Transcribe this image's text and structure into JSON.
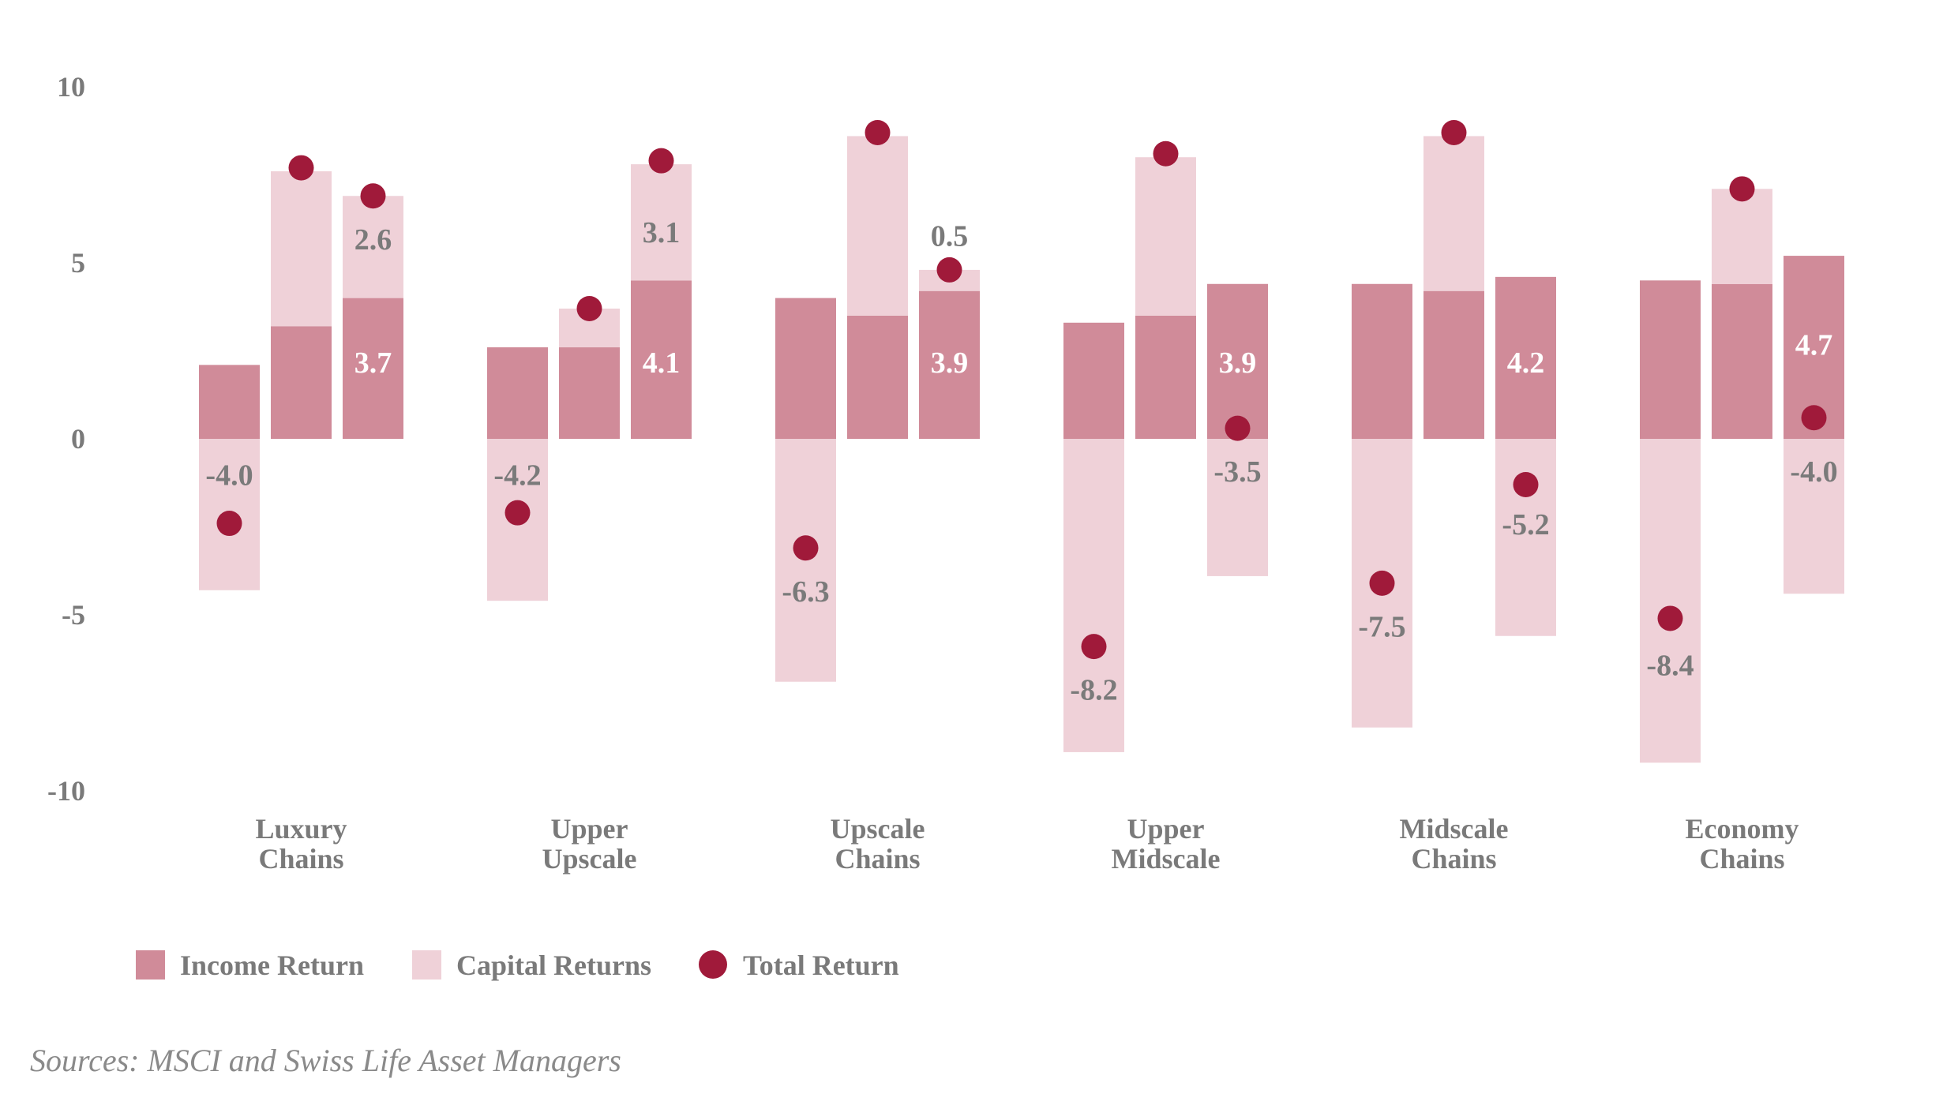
{
  "chart_data": {
    "type": "bar",
    "categories": [
      {
        "line1": "Luxury",
        "line2": "Chains"
      },
      {
        "line1": "Upper",
        "line2": "Upscale"
      },
      {
        "line1": "Upscale",
        "line2": "Chains"
      },
      {
        "line1": "Upper",
        "line2": "Midscale"
      },
      {
        "line1": "Midscale",
        "line2": "Chains"
      },
      {
        "line1": "Economy",
        "line2": "Chains"
      }
    ],
    "ylim": [
      -10,
      10
    ],
    "yticks": [
      10,
      5,
      0,
      -5,
      -10
    ],
    "series": [
      {
        "name": "Income Return",
        "kind": "bar",
        "color": "#d08b99"
      },
      {
        "name": "Capital Returns",
        "kind": "bar",
        "color": "#efd1d8"
      },
      {
        "name": "Total Return",
        "kind": "point",
        "color": "#a01a3a"
      }
    ],
    "groups": [
      {
        "bars": [
          {
            "income": 2.1,
            "capital": -4.3,
            "total": -2.4,
            "label": "-4.0",
            "label_at": -1.0,
            "label_style": "dark"
          },
          {
            "income": 3.2,
            "capital": 4.4,
            "total": 7.7,
            "label": "",
            "label_at": 0,
            "label_style": "dark"
          },
          {
            "income": 4.0,
            "capital": 2.9,
            "total": 6.9,
            "label": "2.6",
            "label_at": 5.7,
            "label_style": "dark",
            "label2": "3.7",
            "label2_at": 2.2
          }
        ]
      },
      {
        "bars": [
          {
            "income": 2.6,
            "capital": -4.6,
            "total": -2.1,
            "label": "-4.2",
            "label_at": -1.0,
            "label_style": "dark"
          },
          {
            "income": 2.6,
            "capital": 1.1,
            "total": 3.7,
            "label": "",
            "label_at": 0,
            "label_style": "dark"
          },
          {
            "income": 4.5,
            "capital": 3.3,
            "total": 7.9,
            "label": "3.1",
            "label_at": 5.9,
            "label_style": "dark",
            "label2": "4.1",
            "label2_at": 2.2
          }
        ]
      },
      {
        "bars": [
          {
            "income": 4.0,
            "capital": -6.9,
            "total": -3.1,
            "label": "-6.3",
            "label_at": -4.3,
            "label_style": "dark"
          },
          {
            "income": 3.5,
            "capital": 5.1,
            "total": 8.7,
            "label": "",
            "label_at": 0,
            "label_style": "dark"
          },
          {
            "income": 4.2,
            "capital": 0.6,
            "total": 4.8,
            "label": "0.5",
            "label_at": 5.8,
            "label_style": "dark",
            "label2": "3.9",
            "label2_at": 2.2
          }
        ]
      },
      {
        "bars": [
          {
            "income": 3.3,
            "capital": -8.9,
            "total": -5.9,
            "label": "-8.2",
            "label_at": -7.1,
            "label_style": "dark"
          },
          {
            "income": 3.5,
            "capital": 4.5,
            "total": 8.1,
            "label": "",
            "label_at": 0,
            "label_style": "dark"
          },
          {
            "income": 4.4,
            "capital": -3.9,
            "total": 0.3,
            "label": "-3.5",
            "label_at": -0.9,
            "label_style": "dark",
            "label2": "3.9",
            "label2_at": 2.2
          }
        ]
      },
      {
        "bars": [
          {
            "income": 4.4,
            "capital": -8.2,
            "total": -4.1,
            "label": "-7.5",
            "label_at": -5.3,
            "label_style": "dark"
          },
          {
            "income": 4.2,
            "capital": 4.4,
            "total": 8.7,
            "label": "",
            "label_at": 0,
            "label_style": "dark"
          },
          {
            "income": 4.6,
            "capital": -5.6,
            "total": -1.3,
            "label": "-5.2",
            "label_at": -2.4,
            "label_style": "dark",
            "label2": "4.2",
            "label2_at": 2.2
          }
        ]
      },
      {
        "bars": [
          {
            "income": 4.5,
            "capital": -9.2,
            "total": -5.1,
            "label": "-8.4",
            "label_at": -6.4,
            "label_style": "dark"
          },
          {
            "income": 4.4,
            "capital": 2.7,
            "total": 7.1,
            "label": "",
            "label_at": 0,
            "label_style": "dark"
          },
          {
            "income": 5.2,
            "capital": -4.4,
            "total": 0.6,
            "label": "-4.0",
            "label_at": -0.9,
            "label_style": "dark",
            "label2": "4.7",
            "label2_at": 2.7
          }
        ]
      }
    ],
    "grid": false,
    "legend_position": "bottom-left"
  },
  "source_note": "Sources: MSCI and Swiss Life Asset Managers"
}
